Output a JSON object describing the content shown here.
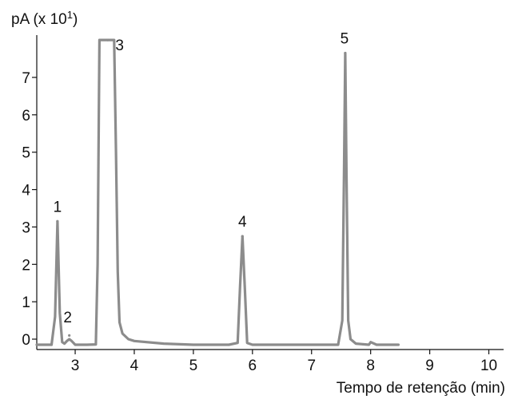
{
  "chart_data": {
    "type": "line",
    "ylabel": "pA (x 10",
    "ylabel_superscript": "1",
    "ylabel_suffix": ")",
    "xlabel": "Tempo de retenção (min)",
    "x_ticks": [
      "3",
      "4",
      "5",
      "6",
      "7",
      "8",
      "9",
      "10"
    ],
    "y_ticks": [
      "0",
      "1",
      "2",
      "3",
      "4",
      "5",
      "6",
      "7"
    ],
    "xlim": [
      2.35,
      10.25
    ],
    "ylim": [
      -0.25,
      8.0
    ],
    "grid": false,
    "line_color": "#8c8c8c",
    "baseline": -0.15,
    "peaks": [
      {
        "label": "1",
        "time": 2.7,
        "height": 3.15,
        "width": 0.025
      },
      {
        "label": "2",
        "time": 2.9,
        "height": 0.1,
        "width": 0.03
      },
      {
        "label": "3",
        "time": 3.55,
        "height": 8.0,
        "width": 0.11
      },
      {
        "label": "4",
        "time": 5.83,
        "height": 2.75,
        "width": 0.027
      },
      {
        "label": "5",
        "time": 7.57,
        "height": 7.65,
        "width": 0.03
      }
    ],
    "series": [
      {
        "x": [
          2.35,
          2.6,
          2.66,
          2.7,
          2.74,
          2.78,
          2.82,
          2.86,
          2.9,
          2.94,
          3.0,
          3.2,
          3.35,
          3.38,
          3.41,
          3.44,
          3.5,
          3.62,
          3.66,
          3.69,
          3.72,
          3.75,
          3.8,
          3.9,
          4.0,
          4.5,
          5.0,
          5.6,
          5.75,
          5.79,
          5.83,
          5.87,
          5.91,
          6.0,
          7.0,
          7.45,
          7.52,
          7.55,
          7.57,
          7.59,
          7.62,
          7.66,
          7.75,
          7.97,
          8.0,
          8.1,
          8.47
        ],
        "y": [
          -0.15,
          -0.15,
          0.6,
          3.15,
          0.7,
          -0.08,
          -0.12,
          -0.05,
          0.0,
          -0.05,
          -0.15,
          -0.15,
          -0.14,
          2.0,
          8.0,
          8.0,
          8.0,
          8.0,
          8.0,
          5.0,
          1.8,
          0.45,
          0.15,
          0.0,
          -0.05,
          -0.12,
          -0.15,
          -0.15,
          -0.1,
          1.4,
          2.75,
          1.4,
          -0.1,
          -0.15,
          -0.15,
          -0.15,
          0.5,
          4.5,
          7.65,
          4.5,
          0.5,
          0.0,
          -0.12,
          -0.15,
          -0.08,
          -0.15,
          -0.15
        ]
      }
    ]
  }
}
